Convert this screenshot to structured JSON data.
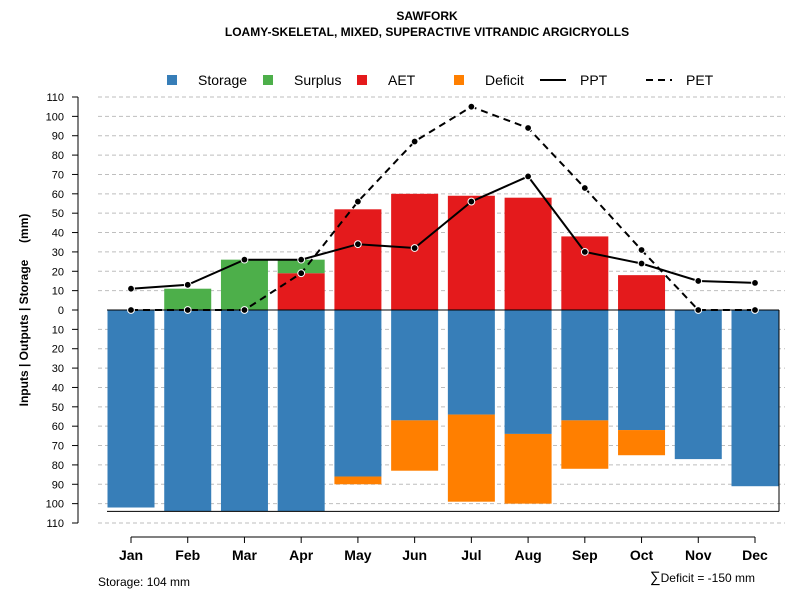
{
  "chart_data": {
    "type": "bar",
    "title": "SAWFORK",
    "subtitle": "LOAMY-SKELETAL, MIXED, SUPERACTIVE VITRANDIC ARGICRYOLLS",
    "ylabel": "Inputs | Outputs | Storage     (mm)",
    "xlabel": "",
    "ylim": [
      -110,
      110
    ],
    "yticks": [
      110,
      100,
      90,
      80,
      70,
      60,
      50,
      40,
      30,
      20,
      10,
      0,
      10,
      20,
      30,
      40,
      50,
      60,
      70,
      80,
      90,
      100,
      110
    ],
    "categories": [
      "Jan",
      "Feb",
      "Mar",
      "Apr",
      "May",
      "Jun",
      "Jul",
      "Aug",
      "Sep",
      "Oct",
      "Nov",
      "Dec"
    ],
    "storage_capacity": 104,
    "series": [
      {
        "name": "Storage",
        "color": "#377EB8",
        "values": [
          102,
          104,
          104,
          104,
          86,
          57,
          54,
          64,
          57,
          62,
          77,
          91
        ]
      },
      {
        "name": "Surplus",
        "color": "#4DAF4A",
        "values": [
          0,
          11,
          26,
          7,
          0,
          0,
          0,
          0,
          0,
          0,
          0,
          0
        ]
      },
      {
        "name": "AET",
        "color": "#E41A1C",
        "values": [
          0,
          0,
          0,
          19,
          52,
          60,
          59,
          58,
          38,
          18,
          0,
          0
        ]
      },
      {
        "name": "Deficit",
        "color": "#FF7F00",
        "values": [
          0,
          0,
          0,
          0,
          4,
          26,
          45,
          36,
          25,
          13,
          0,
          0
        ]
      },
      {
        "name": "PPT",
        "style": "solid",
        "values": [
          11,
          13,
          26,
          26,
          34,
          32,
          56,
          69,
          30,
          24,
          15,
          14
        ]
      },
      {
        "name": "PET",
        "style": "dashed",
        "values": [
          0,
          0,
          0,
          19,
          56,
          87,
          105,
          94,
          63,
          31,
          0,
          0
        ]
      }
    ],
    "legend": [
      "Storage",
      "Surplus",
      "AET",
      "Deficit",
      "PPT",
      "PET"
    ],
    "legend_position": "top-center",
    "grid": true
  },
  "footer": {
    "storage_note": "Storage: 104 mm",
    "deficit_symbol": "∑",
    "deficit_note": "Deficit = -150 mm"
  }
}
